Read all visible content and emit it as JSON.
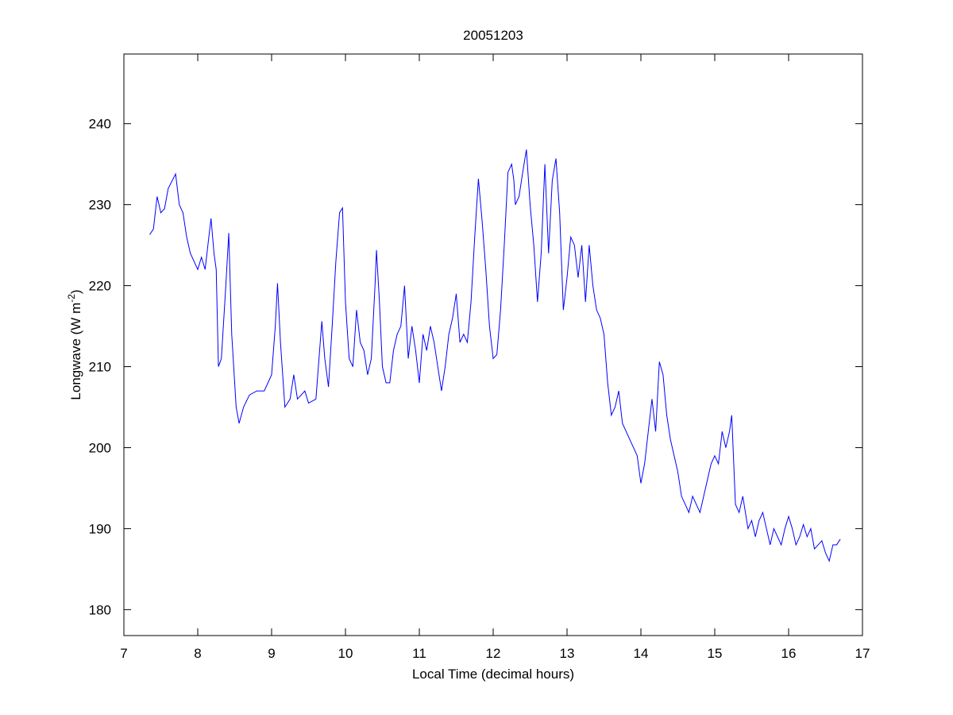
{
  "chart_data": {
    "type": "line",
    "title": "20051203",
    "xlabel": "Local Time (decimal hours)",
    "ylabel": "Longwave (W m",
    "ylabel_superscript": "-2",
    "ylabel_end": ")",
    "color": "#0000ff",
    "xlim": [
      7,
      17
    ],
    "xticks": [
      7,
      8,
      9,
      10,
      11,
      12,
      13,
      14,
      15,
      16,
      17
    ],
    "ylim": [
      176.8,
      248.6
    ],
    "yticks": [
      180,
      190,
      200,
      210,
      220,
      230,
      240
    ],
    "box": true,
    "x": [
      7.35,
      7.4,
      7.45,
      7.5,
      7.55,
      7.6,
      7.7,
      7.75,
      7.8,
      7.85,
      7.9,
      8.0,
      8.05,
      8.1,
      8.15,
      8.18,
      8.22,
      8.25,
      8.28,
      8.32,
      8.38,
      8.42,
      8.46,
      8.52,
      8.56,
      8.62,
      8.7,
      8.8,
      8.9,
      9.0,
      9.05,
      9.08,
      9.12,
      9.18,
      9.25,
      9.3,
      9.35,
      9.45,
      9.5,
      9.6,
      9.65,
      9.68,
      9.72,
      9.77,
      9.82,
      9.87,
      9.92,
      9.96,
      10.0,
      10.05,
      10.1,
      10.15,
      10.2,
      10.25,
      10.3,
      10.35,
      10.4,
      10.42,
      10.46,
      10.5,
      10.55,
      10.6,
      10.65,
      10.7,
      10.75,
      10.8,
      10.85,
      10.9,
      10.95,
      11.0,
      11.05,
      11.1,
      11.15,
      11.2,
      11.25,
      11.3,
      11.35,
      11.4,
      11.45,
      11.5,
      11.55,
      11.6,
      11.65,
      11.7,
      11.75,
      11.8,
      11.85,
      11.9,
      11.95,
      12.0,
      12.05,
      12.1,
      12.15,
      12.2,
      12.25,
      12.28,
      12.3,
      12.35,
      12.4,
      12.45,
      12.5,
      12.55,
      12.6,
      12.65,
      12.7,
      12.75,
      12.8,
      12.85,
      12.9,
      12.95,
      13.0,
      13.05,
      13.1,
      13.15,
      13.2,
      13.25,
      13.3,
      13.35,
      13.4,
      13.45,
      13.5,
      13.55,
      13.6,
      13.65,
      13.7,
      13.75,
      13.8,
      13.85,
      13.9,
      13.95,
      14.0,
      14.05,
      14.1,
      14.15,
      14.2,
      14.25,
      14.3,
      14.35,
      14.4,
      14.45,
      14.5,
      14.55,
      14.6,
      14.65,
      14.7,
      14.75,
      14.8,
      14.85,
      14.9,
      14.95,
      15.0,
      15.05,
      15.1,
      15.15,
      15.2,
      15.23,
      15.28,
      15.33,
      15.38,
      15.45,
      15.5,
      15.55,
      15.6,
      15.65,
      15.7,
      15.75,
      15.8,
      15.85,
      15.9,
      15.95,
      16.0,
      16.05,
      16.1,
      16.15,
      16.2,
      16.25,
      16.3,
      16.35,
      16.4,
      16.45,
      16.5,
      16.55,
      16.6,
      16.65,
      16.7
    ],
    "values": [
      226.3,
      227,
      231,
      229,
      229.5,
      232,
      233.8,
      230,
      229,
      226,
      224,
      222,
      223.5,
      222,
      226,
      228.3,
      224,
      222,
      210,
      211,
      220,
      226.5,
      214,
      205,
      203,
      205,
      206.5,
      207,
      207,
      209,
      215,
      220.3,
      213,
      205,
      206,
      209,
      206,
      207,
      205.5,
      206,
      212,
      215.6,
      211,
      207.5,
      215,
      223,
      229,
      229.6,
      218,
      211,
      210,
      217,
      213,
      212,
      209,
      211,
      220,
      224.4,
      218,
      210,
      208,
      208,
      212,
      214,
      215,
      220,
      211,
      215,
      212,
      208,
      214,
      212,
      215,
      213,
      210,
      207,
      210,
      214,
      216,
      219,
      213,
      214,
      213,
      218,
      226,
      233.2,
      228,
      222,
      215,
      211,
      211.5,
      217,
      225,
      234,
      235,
      233,
      230,
      231,
      234,
      236.8,
      230,
      225,
      218,
      224,
      235,
      224,
      233,
      235.7,
      229,
      217,
      221,
      226,
      225,
      221,
      225,
      218,
      225,
      220,
      217,
      216,
      214,
      208,
      204,
      205,
      207,
      203,
      202,
      201,
      200,
      199,
      195.6,
      198,
      202,
      206,
      202,
      210.6,
      209,
      204,
      201,
      199,
      197,
      194,
      193,
      192,
      194,
      193,
      192,
      194,
      196,
      198,
      199,
      198,
      202,
      200,
      202,
      204,
      193,
      192,
      194,
      190,
      191,
      189,
      191,
      192,
      190,
      188,
      190,
      189,
      188,
      190,
      191.5,
      190,
      188,
      189,
      190.5,
      189,
      190,
      187.5,
      188,
      188.5,
      187,
      186,
      188,
      188,
      188.7
    ]
  }
}
